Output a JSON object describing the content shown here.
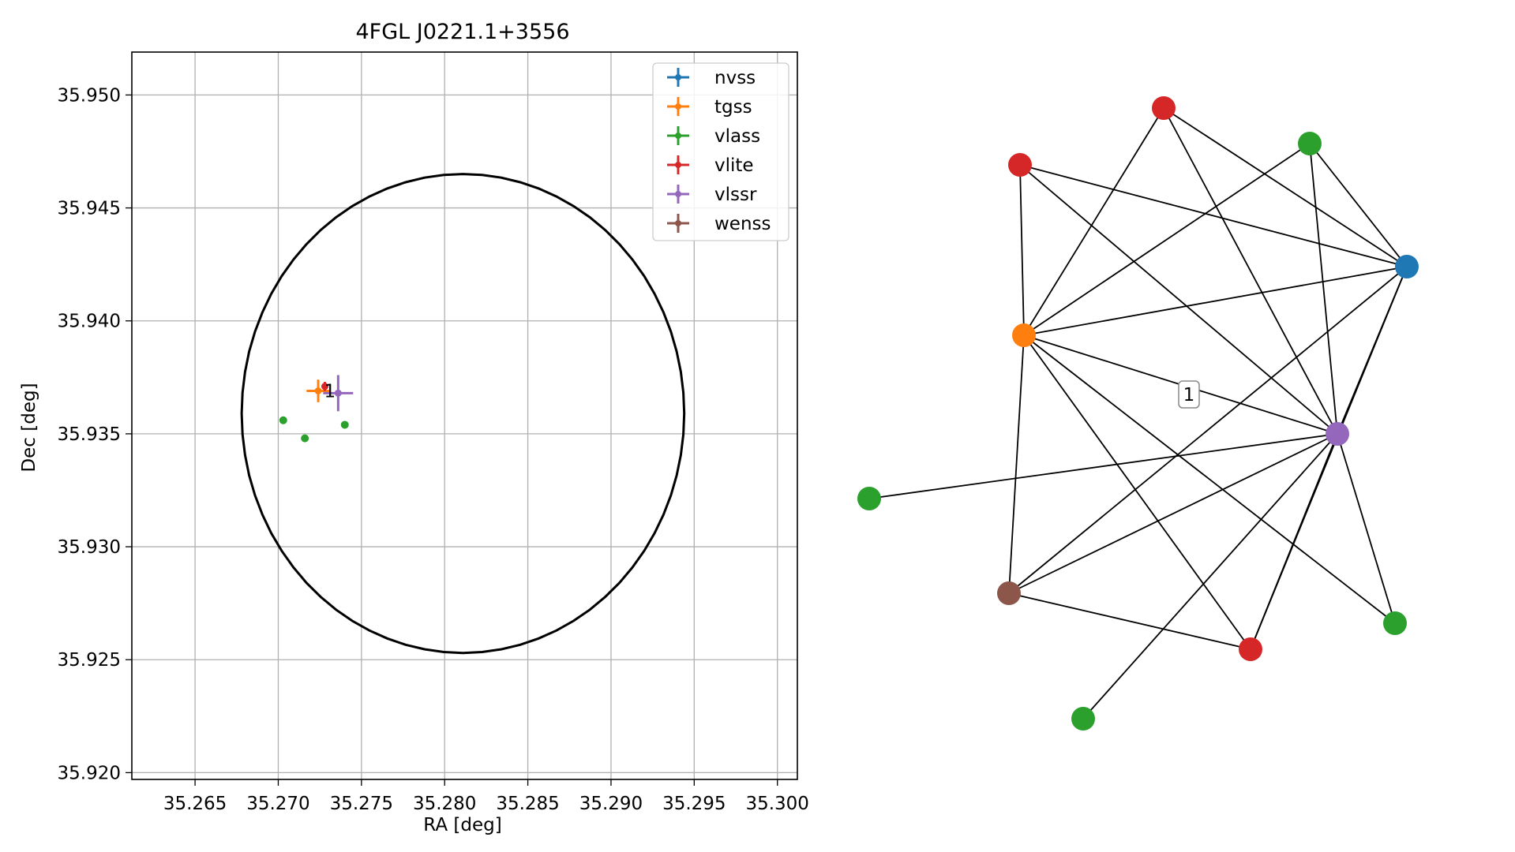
{
  "chart_data": [
    {
      "type": "scatter",
      "title": "4FGL J0221.1+3556",
      "xlabel": "RA [deg]",
      "ylabel": "Dec [deg]",
      "xlim": [
        35.2612,
        35.3012
      ],
      "ylim": [
        35.9197,
        35.9519
      ],
      "grid": true,
      "legend_position": "top-right",
      "x_ticks": [
        35.265,
        35.27,
        35.275,
        35.28,
        35.285,
        35.29,
        35.295,
        35.3
      ],
      "x_tick_labels": [
        "35.265",
        "35.270",
        "35.275",
        "35.280",
        "35.285",
        "35.290",
        "35.295",
        "35.300"
      ],
      "y_ticks": [
        35.92,
        35.925,
        35.93,
        35.935,
        35.94,
        35.945,
        35.95
      ],
      "y_tick_labels": [
        "35.920",
        "35.925",
        "35.930",
        "35.935",
        "35.940",
        "35.945",
        "35.950"
      ],
      "ellipse": {
        "center": [
          35.2811,
          35.9359
        ],
        "half_width": 0.0133,
        "half_height": 0.0106,
        "color": "#000000"
      },
      "series": [
        {
          "name": "nvss",
          "color": "#1f77b4",
          "points": []
        },
        {
          "name": "tgss",
          "color": "#ff7f0e",
          "points": [
            {
              "x": 35.2724,
              "y": 35.9369,
              "xerr": 0.0007,
              "yerr": 0.0005
            }
          ]
        },
        {
          "name": "vlass",
          "color": "#2ca02c",
          "points": [
            {
              "x": 35.2703,
              "y": 35.9356,
              "xerr": 0,
              "yerr": 0
            },
            {
              "x": 35.2716,
              "y": 35.9348,
              "xerr": 0,
              "yerr": 0
            },
            {
              "x": 35.274,
              "y": 35.9354,
              "xerr": 0,
              "yerr": 0
            }
          ]
        },
        {
          "name": "vlite",
          "color": "#d62728",
          "points": [
            {
              "x": 35.2728,
              "y": 35.9371,
              "xerr": 0.0002,
              "yerr": 0.0002
            }
          ]
        },
        {
          "name": "vlssr",
          "color": "#9467bd",
          "points": [
            {
              "x": 35.2736,
              "y": 35.9368,
              "xerr": 0.0009,
              "yerr": 0.0008
            }
          ]
        },
        {
          "name": "wenss",
          "color": "#8c564b",
          "points": []
        }
      ],
      "annotations": [
        {
          "text": "1",
          "x": 35.2731,
          "y": 35.9369
        }
      ]
    },
    {
      "type": "network",
      "nodes": [
        {
          "id": "red_top",
          "color": "#d62728"
        },
        {
          "id": "green_top",
          "color": "#2ca02c"
        },
        {
          "id": "red_upper_left",
          "color": "#d62728"
        },
        {
          "id": "blue",
          "color": "#1f77b4"
        },
        {
          "id": "orange",
          "color": "#ff7f0e"
        },
        {
          "id": "purple",
          "color": "#9467bd"
        },
        {
          "id": "green_left",
          "color": "#2ca02c"
        },
        {
          "id": "brown",
          "color": "#8c564b"
        },
        {
          "id": "green_right",
          "color": "#2ca02c"
        },
        {
          "id": "red_bottom",
          "color": "#d62728"
        },
        {
          "id": "green_bottom",
          "color": "#2ca02c"
        }
      ],
      "edges": [
        [
          "red_top",
          "orange"
        ],
        [
          "red_top",
          "purple"
        ],
        [
          "red_top",
          "blue"
        ],
        [
          "green_top",
          "orange"
        ],
        [
          "green_top",
          "blue"
        ],
        [
          "green_top",
          "purple"
        ],
        [
          "red_upper_left",
          "orange"
        ],
        [
          "red_upper_left",
          "blue"
        ],
        [
          "red_upper_left",
          "purple"
        ],
        [
          "orange",
          "blue"
        ],
        [
          "orange",
          "purple"
        ],
        [
          "orange",
          "brown"
        ],
        [
          "orange",
          "red_bottom"
        ],
        [
          "orange",
          "green_right"
        ],
        [
          "blue",
          "purple"
        ],
        [
          "blue",
          "brown"
        ],
        [
          "blue",
          "red_bottom"
        ],
        [
          "purple",
          "green_left"
        ],
        [
          "purple",
          "brown"
        ],
        [
          "purple",
          "red_bottom"
        ],
        [
          "purple",
          "green_right"
        ],
        [
          "purple",
          "green_bottom"
        ],
        [
          "brown",
          "red_bottom"
        ]
      ],
      "labels": [
        {
          "text": "1"
        }
      ]
    }
  ]
}
